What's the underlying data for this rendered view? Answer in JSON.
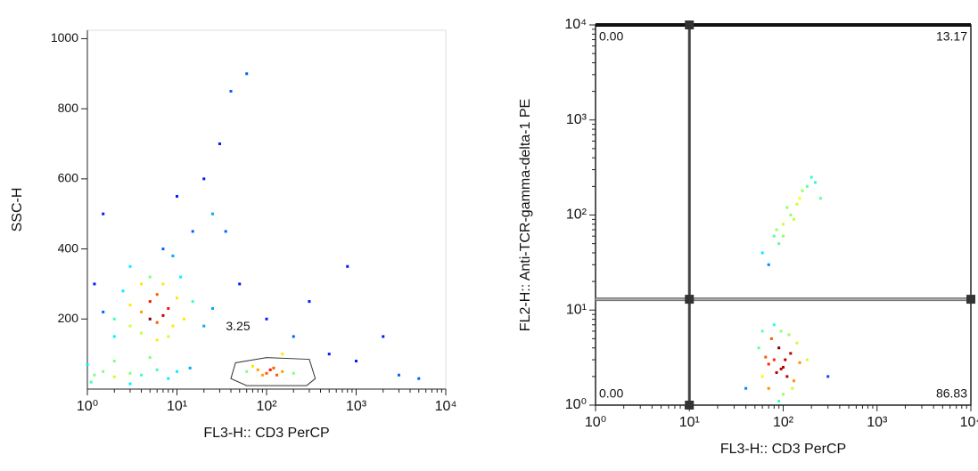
{
  "chart_data": [
    {
      "type": "scatter",
      "x_label": "FL3-H:: CD3 PerCP",
      "y_label": "SSC-H",
      "xscale": "log",
      "xlim": [
        1,
        10000
      ],
      "ylim": [
        0,
        1024
      ],
      "xticks": [
        {
          "value": 1,
          "label": "10⁰"
        },
        {
          "value": 10,
          "label": "10¹"
        },
        {
          "value": 100,
          "label": "10²"
        },
        {
          "value": 1000,
          "label": "10³"
        },
        {
          "value": 10000,
          "label": "10⁴"
        }
      ],
      "yticks": [
        200,
        400,
        600,
        800,
        1000
      ],
      "x": [
        3,
        4,
        5,
        6,
        7,
        8,
        5,
        4,
        6,
        3,
        2,
        9,
        10,
        7,
        5,
        2.5,
        1.5,
        12,
        8,
        6,
        4,
        3,
        2,
        15,
        11,
        9,
        7,
        1.2,
        20,
        25,
        1.2,
        1.5,
        2,
        3,
        4,
        6,
        8,
        10,
        1,
        2,
        5,
        14,
        1.1,
        3,
        60,
        80,
        100,
        120,
        90,
        150,
        70,
        200,
        110,
        130,
        20,
        25,
        30,
        40,
        35,
        50,
        100,
        200,
        500,
        1000,
        3000,
        5000,
        800,
        60,
        15,
        10,
        300,
        2000,
        150,
        1.5
      ],
      "y": [
        180,
        220,
        200,
        190,
        210,
        230,
        250,
        160,
        270,
        240,
        200,
        180,
        260,
        300,
        320,
        280,
        220,
        200,
        150,
        140,
        300,
        350,
        150,
        250,
        320,
        380,
        400,
        300,
        180,
        230,
        40,
        50,
        35,
        45,
        40,
        55,
        30,
        50,
        70,
        80,
        90,
        60,
        20,
        15,
        50,
        55,
        45,
        60,
        40,
        50,
        65,
        45,
        55,
        40,
        600,
        500,
        700,
        850,
        450,
        300,
        200,
        150,
        100,
        80,
        40,
        30,
        350,
        900,
        450,
        550,
        250,
        150,
        100,
        500
      ],
      "gate": {
        "label": "3.25",
        "x": [
          40,
          45,
          100,
          300,
          350,
          280,
          60
        ],
        "y": [
          30,
          75,
          90,
          85,
          30,
          10,
          10
        ]
      }
    },
    {
      "type": "scatter",
      "x_label": "FL3-H:: CD3 PerCP",
      "y_label": "FL2-H:: Anti-TCR-gamma-delta-1 PE",
      "xscale": "log",
      "yscale": "log",
      "xlim": [
        1,
        10000
      ],
      "ylim": [
        1,
        10000
      ],
      "xticks": [
        {
          "value": 1,
          "label": "10⁰"
        },
        {
          "value": 10,
          "label": "10¹"
        },
        {
          "value": 100,
          "label": "10²"
        },
        {
          "value": 1000,
          "label": "10³"
        },
        {
          "value": 10000,
          "label": "10⁴"
        }
      ],
      "yticks": [
        {
          "value": 1,
          "label": "10⁰"
        },
        {
          "value": 10,
          "label": "10¹"
        },
        {
          "value": 100,
          "label": "10²"
        },
        {
          "value": 1000,
          "label": "10³"
        },
        {
          "value": 10000,
          "label": "10⁴"
        }
      ],
      "x": [
        60,
        80,
        100,
        90,
        70,
        120,
        110,
        75,
        95,
        130,
        85,
        65,
        150,
        100,
        80,
        60,
        140,
        90,
        70,
        105,
        115,
        55,
        125,
        180,
        95,
        60,
        80,
        100,
        120,
        150,
        180,
        200,
        90,
        110,
        130,
        70,
        160,
        140,
        220,
        100,
        85,
        300,
        40,
        250
      ],
      "y": [
        2,
        3,
        2.5,
        4,
        1.5,
        3.5,
        2,
        5,
        6,
        1.8,
        2.2,
        3.2,
        2.8,
        1.3,
        7,
        6,
        4.5,
        1.1,
        2.7,
        3,
        5.5,
        4,
        1.5,
        3,
        2.4,
        40,
        60,
        80,
        100,
        150,
        200,
        250,
        50,
        120,
        90,
        30,
        180,
        130,
        220,
        60,
        70,
        2,
        1.5,
        150
      ],
      "quadrant_x": 10,
      "quadrant_y": 13,
      "quadrant_labels": [
        "0.00",
        "13.17",
        "0.00",
        "86.83"
      ]
    }
  ]
}
